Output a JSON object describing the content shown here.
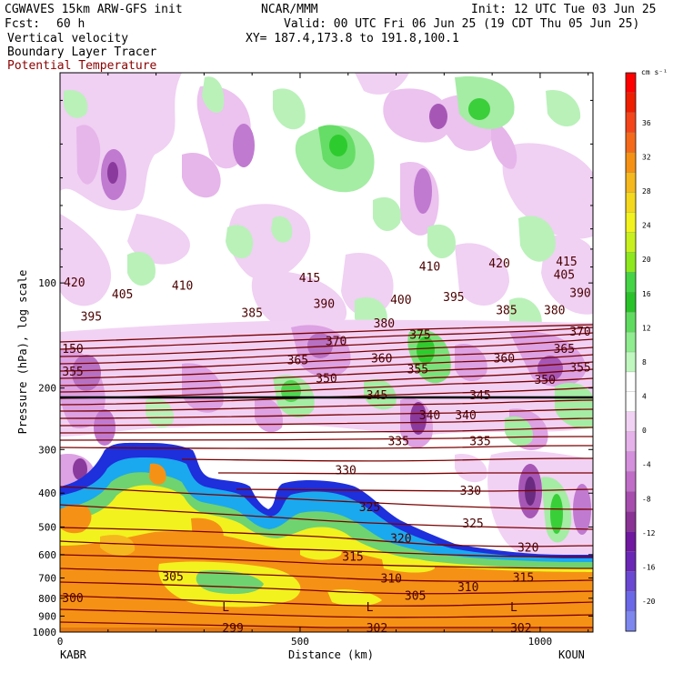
{
  "header": {
    "model": "CGWAVES 15km ARW-GFS init",
    "org": "NCAR/MMM",
    "init": "Init: 12 UTC Tue 03 Jun 25",
    "fcst_label": "Fcst:",
    "fcst_value": "60 h",
    "valid": "Valid: 00 UTC Fri 06 Jun 25 (19 CDT Thu 05 Jun 25)",
    "field1": "Vertical velocity",
    "field2": "Boundary Layer Tracer",
    "field3": "Potential Temperature",
    "xy": "XY= 187.4,173.8 to 191.8,100.1"
  },
  "colors": {
    "theta": "#7b0000",
    "field3_text": "#8b0000",
    "blue": "#1e2fdc",
    "cyan": "#1aa9ee",
    "green": "#6fd36f",
    "yellow": "#f2f21e",
    "orange": "#f59215",
    "purple": "#b64bb6",
    "lilac": "#e9b7ee"
  },
  "chart_data": {
    "type": "cross-section",
    "ylabel": "Pressure (hPa), log scale",
    "xlabel": "Distance (km)",
    "y_scale": "log",
    "ylim": [
      1000,
      25
    ],
    "xlim": [
      0,
      1110
    ],
    "y_ticks": [
      "100",
      "200",
      "300",
      "400",
      "500",
      "600",
      "700",
      "800",
      "900",
      "1000"
    ],
    "x_ticks": [
      "0",
      "500",
      "1000"
    ],
    "left_station": "KABR",
    "right_station": "KOUN",
    "colorbar": {
      "unit": "cm s⁻¹",
      "labels": [
        "36",
        "32",
        "28",
        "24",
        "20",
        "16",
        "12",
        "8",
        "4",
        "0",
        "-4",
        "-8",
        "-12",
        "-16",
        "-20"
      ],
      "colors": [
        "#ff0000",
        "#ee1e00",
        "#f4451a",
        "#f46a1a",
        "#f59215",
        "#f5b81e",
        "#f3d81e",
        "#f2f21e",
        "#c8f01e",
        "#8de81e",
        "#45d445",
        "#29c329",
        "#5fdc5f",
        "#8fec8f",
        "#bff7bf",
        "#ffffff",
        "#ffffff",
        "#f2d2f4",
        "#e5b2ea",
        "#d490dc",
        "#c06dc8",
        "#a64dae",
        "#8a3394",
        "#7018a0",
        "#6a27b6",
        "#6a48d2",
        "#6a68e6",
        "#7d87ee"
      ]
    },
    "theta_labels": [
      {
        "text": "420",
        "x": 30,
        "p": 100
      },
      {
        "text": "405",
        "x": 130,
        "p": 108
      },
      {
        "text": "410",
        "x": 255,
        "p": 102
      },
      {
        "text": "415",
        "x": 520,
        "p": 97
      },
      {
        "text": "410",
        "x": 770,
        "p": 90
      },
      {
        "text": "420",
        "x": 915,
        "p": 88
      },
      {
        "text": "405",
        "x": 1050,
        "p": 95
      },
      {
        "text": "415",
        "x": 1055,
        "p": 87
      },
      {
        "text": "395",
        "x": 65,
        "p": 125
      },
      {
        "text": "400",
        "x": 710,
        "p": 112
      },
      {
        "text": "395",
        "x": 820,
        "p": 110
      },
      {
        "text": "385",
        "x": 400,
        "p": 122
      },
      {
        "text": "390",
        "x": 550,
        "p": 115
      },
      {
        "text": "380",
        "x": 675,
        "p": 131
      },
      {
        "text": "385",
        "x": 930,
        "p": 120
      },
      {
        "text": "380",
        "x": 1030,
        "p": 120
      },
      {
        "text": "390",
        "x": 1105,
        "p": 107
      },
      {
        "text": "375",
        "x": 750,
        "p": 141
      },
      {
        "text": "370",
        "x": 575,
        "p": 147
      },
      {
        "text": "370",
        "x": 1095,
        "p": 138
      },
      {
        "text": "365",
        "x": 495,
        "p": 167
      },
      {
        "text": "365",
        "x": 1050,
        "p": 155
      },
      {
        "text": "360",
        "x": 670,
        "p": 165
      },
      {
        "text": "360",
        "x": 925,
        "p": 165
      },
      {
        "text": "355",
        "x": 0,
        "p": 180
      },
      {
        "text": "355",
        "x": 745,
        "p": 177
      },
      {
        "text": "355",
        "x": 1105,
        "p": 175
      },
      {
        "text": "350",
        "x": 555,
        "p": 188
      },
      {
        "text": "350",
        "x": 1010,
        "p": 190
      },
      {
        "text": "345",
        "x": 660,
        "p": 210
      },
      {
        "text": "345",
        "x": 875,
        "p": 210
      },
      {
        "text": "340",
        "x": 770,
        "p": 240
      },
      {
        "text": "340",
        "x": 845,
        "p": 240
      },
      {
        "text": "335",
        "x": 705,
        "p": 285
      },
      {
        "text": "335",
        "x": 875,
        "p": 285
      },
      {
        "text": "330",
        "x": 595,
        "p": 345
      },
      {
        "text": "330",
        "x": 855,
        "p": 395
      },
      {
        "text": "325",
        "x": 645,
        "p": 440
      },
      {
        "text": "325",
        "x": 860,
        "p": 490
      },
      {
        "text": "320",
        "x": 710,
        "p": 540
      },
      {
        "text": "320",
        "x": 975,
        "p": 575
      },
      {
        "text": "315",
        "x": 610,
        "p": 610
      },
      {
        "text": "315",
        "x": 965,
        "p": 700
      },
      {
        "text": "310",
        "x": 690,
        "p": 705
      },
      {
        "text": "310",
        "x": 850,
        "p": 745
      },
      {
        "text": "305",
        "x": 235,
        "p": 695
      },
      {
        "text": "305",
        "x": 740,
        "p": 790
      },
      {
        "text": "300",
        "x": 5,
        "p": 800
      },
      {
        "text": "299",
        "x": 360,
        "p": 1000
      },
      {
        "text": "302",
        "x": 660,
        "p": 1000
      },
      {
        "text": "302",
        "x": 960,
        "p": 1000
      },
      {
        "text": "150",
        "x": 0,
        "p": 155
      }
    ],
    "low_markers": [
      {
        "text": "L",
        "x": 345
      },
      {
        "text": "L",
        "x": 645
      },
      {
        "text": "L",
        "x": 945
      }
    ]
  }
}
